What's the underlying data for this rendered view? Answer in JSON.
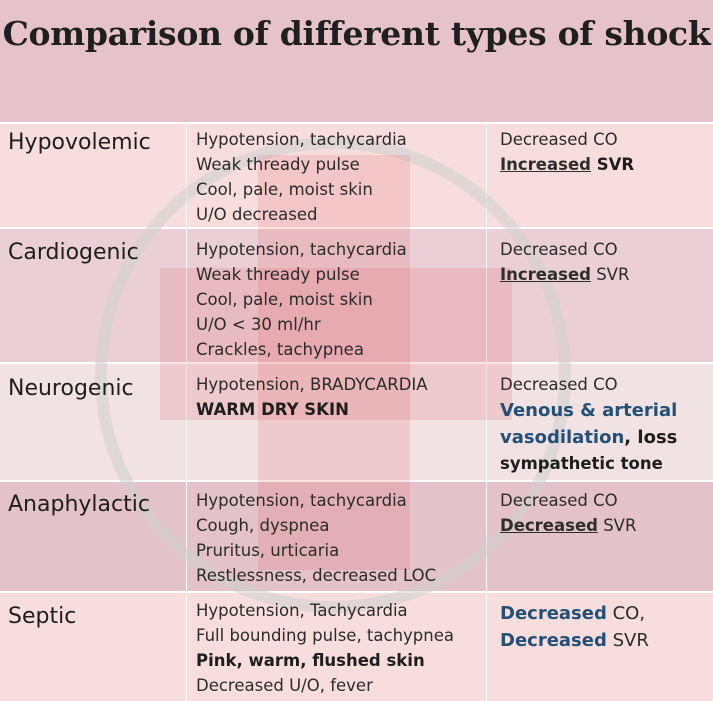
{
  "title": "Comparison of different types of shock",
  "rows": [
    {
      "type": "Hypovolemic",
      "signs": [
        "Hypotension, tachycardia",
        "Weak thready pulse",
        "Cool, pale, moist skin",
        "U/O decreased"
      ],
      "hemo": {
        "line1": "Decreased CO",
        "line2_strong": "Increased",
        "line2_rest": " SVR"
      }
    },
    {
      "type": "Cardiogenic",
      "signs": [
        "Hypotension, tachycardia",
        "Weak thready pulse",
        "Cool, pale, moist skin",
        "U/O < 30 ml/hr",
        "Crackles, tachypnea"
      ],
      "hemo": {
        "line1": "Decreased CO",
        "line2_strong": "Increased",
        "line2_rest": " SVR"
      }
    },
    {
      "type": "Neurogenic",
      "signs": [
        "Hypotension, BRADYCARDIA",
        "WARM DRY SKIN"
      ],
      "hemo": {
        "line1": "Decreased CO",
        "line2": "Venous & arterial",
        "line3_strong": "vasodilation",
        "line3_rest": ", loss",
        "line4": "sympathetic tone"
      }
    },
    {
      "type": "Anaphylactic",
      "signs": [
        "Hypotension, tachycardia",
        "Cough, dyspnea",
        "Pruritus, urticaria",
        "Restlessness, decreased LOC"
      ],
      "hemo": {
        "line1": "Decreased CO",
        "line2_strong": "Decreased",
        "line2_rest": " SVR"
      }
    },
    {
      "type": "Septic",
      "signs": [
        "Hypotension, Tachycardia",
        "Full bounding pulse, tachypnea",
        "Pink, warm, flushed skin",
        "Decreased U/O, fever"
      ],
      "hemo": {
        "line1_strong": "Decreased",
        "line1_rest": " CO,",
        "line2_strong": "Decreased",
        "line2_rest": " SVR"
      }
    }
  ],
  "colors": {
    "accent_blue": "#244f76",
    "watermark": "#e2505a"
  }
}
